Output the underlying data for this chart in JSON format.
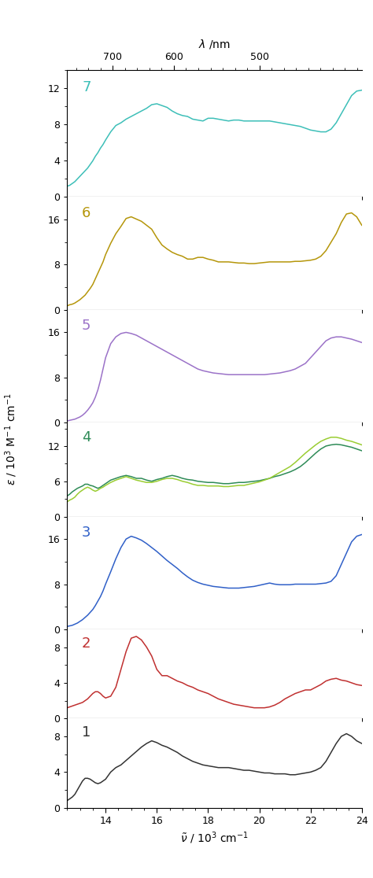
{
  "x_range": [
    12.5,
    24.0
  ],
  "lambda_ticks": [
    700,
    600,
    500
  ],
  "nu_ticks": [
    14,
    16,
    18,
    20,
    22,
    24
  ],
  "xlabel": "$\\tilde{\\nu}$ / 10$^3$ cm$^{-1}$",
  "ylabel": "$\\varepsilon$ / 10$^3$ M$^{-1}$ cm$^{-1}$",
  "lambda_label": "$\\lambda$ /nm",
  "panels": [
    {
      "label": "7",
      "color": "#3dbfb8",
      "ylim": [
        0,
        14
      ],
      "yticks": [
        0,
        4,
        8,
        12
      ],
      "data_x": [
        12.5,
        12.6,
        12.7,
        12.8,
        12.9,
        13.0,
        13.1,
        13.2,
        13.3,
        13.4,
        13.5,
        13.6,
        13.7,
        13.8,
        13.9,
        14.0,
        14.2,
        14.4,
        14.6,
        14.8,
        15.0,
        15.2,
        15.4,
        15.6,
        15.8,
        16.0,
        16.2,
        16.4,
        16.6,
        16.8,
        17.0,
        17.2,
        17.4,
        17.6,
        17.8,
        18.0,
        18.2,
        18.4,
        18.6,
        18.8,
        19.0,
        19.2,
        19.4,
        19.6,
        19.8,
        20.0,
        20.2,
        20.4,
        20.6,
        20.8,
        21.0,
        21.2,
        21.4,
        21.6,
        21.8,
        22.0,
        22.2,
        22.4,
        22.6,
        22.8,
        23.0,
        23.2,
        23.4,
        23.6,
        23.8,
        24.0
      ],
      "data_y": [
        1.2,
        1.3,
        1.5,
        1.7,
        2.0,
        2.3,
        2.6,
        2.9,
        3.2,
        3.6,
        4.0,
        4.5,
        4.9,
        5.4,
        5.8,
        6.3,
        7.2,
        7.9,
        8.2,
        8.6,
        8.9,
        9.2,
        9.5,
        9.8,
        10.2,
        10.3,
        10.1,
        9.9,
        9.5,
        9.2,
        9.0,
        8.9,
        8.6,
        8.5,
        8.4,
        8.7,
        8.7,
        8.6,
        8.5,
        8.4,
        8.5,
        8.5,
        8.4,
        8.4,
        8.4,
        8.4,
        8.4,
        8.4,
        8.3,
        8.2,
        8.1,
        8.0,
        7.9,
        7.8,
        7.6,
        7.4,
        7.3,
        7.2,
        7.2,
        7.5,
        8.2,
        9.2,
        10.2,
        11.2,
        11.7,
        11.8
      ]
    },
    {
      "label": "6",
      "color": "#b5960a",
      "ylim": [
        0,
        20
      ],
      "yticks": [
        0,
        8,
        16
      ],
      "data_x": [
        12.5,
        12.6,
        12.7,
        12.8,
        12.9,
        13.0,
        13.1,
        13.2,
        13.3,
        13.4,
        13.5,
        13.6,
        13.7,
        13.8,
        13.9,
        14.0,
        14.2,
        14.4,
        14.6,
        14.8,
        15.0,
        15.2,
        15.4,
        15.6,
        15.8,
        16.0,
        16.2,
        16.4,
        16.6,
        16.8,
        17.0,
        17.2,
        17.4,
        17.6,
        17.8,
        18.0,
        18.2,
        18.4,
        18.6,
        18.8,
        19.0,
        19.2,
        19.4,
        19.6,
        19.8,
        20.0,
        20.2,
        20.4,
        20.6,
        20.8,
        21.0,
        21.2,
        21.4,
        21.6,
        21.8,
        22.0,
        22.2,
        22.4,
        22.6,
        22.8,
        23.0,
        23.2,
        23.4,
        23.6,
        23.8,
        24.0
      ],
      "data_y": [
        0.7,
        0.9,
        1.0,
        1.2,
        1.5,
        1.8,
        2.2,
        2.6,
        3.2,
        3.8,
        4.5,
        5.5,
        6.5,
        7.5,
        8.5,
        9.8,
        11.8,
        13.5,
        14.8,
        16.2,
        16.5,
        16.1,
        15.7,
        15.0,
        14.3,
        12.8,
        11.5,
        10.8,
        10.2,
        9.8,
        9.5,
        9.0,
        9.0,
        9.3,
        9.3,
        9.0,
        8.8,
        8.5,
        8.5,
        8.5,
        8.4,
        8.3,
        8.3,
        8.2,
        8.2,
        8.3,
        8.4,
        8.5,
        8.5,
        8.5,
        8.5,
        8.5,
        8.6,
        8.6,
        8.7,
        8.8,
        9.0,
        9.5,
        10.5,
        12.0,
        13.5,
        15.5,
        17.0,
        17.2,
        16.5,
        15.0
      ]
    },
    {
      "label": "5",
      "color": "#9b72c8",
      "ylim": [
        0,
        20
      ],
      "yticks": [
        0,
        8,
        16
      ],
      "data_x": [
        12.5,
        12.6,
        12.7,
        12.8,
        12.9,
        13.0,
        13.1,
        13.2,
        13.3,
        13.4,
        13.5,
        13.6,
        13.7,
        13.8,
        13.9,
        14.0,
        14.2,
        14.4,
        14.6,
        14.8,
        15.0,
        15.2,
        15.4,
        15.6,
        15.8,
        16.0,
        16.2,
        16.4,
        16.6,
        16.8,
        17.0,
        17.2,
        17.4,
        17.6,
        17.8,
        18.0,
        18.2,
        18.4,
        18.6,
        18.8,
        19.0,
        19.2,
        19.4,
        19.6,
        19.8,
        20.0,
        20.2,
        20.4,
        20.6,
        20.8,
        21.0,
        21.2,
        21.4,
        21.6,
        21.8,
        22.0,
        22.2,
        22.4,
        22.6,
        22.8,
        23.0,
        23.2,
        23.4,
        23.6,
        23.8,
        24.0
      ],
      "data_y": [
        0.3,
        0.4,
        0.5,
        0.6,
        0.8,
        1.0,
        1.3,
        1.7,
        2.2,
        2.8,
        3.5,
        4.5,
        5.8,
        7.5,
        9.5,
        11.5,
        14.0,
        15.2,
        15.8,
        16.0,
        15.8,
        15.5,
        15.0,
        14.5,
        14.0,
        13.5,
        13.0,
        12.5,
        12.0,
        11.5,
        11.0,
        10.5,
        10.0,
        9.5,
        9.2,
        9.0,
        8.8,
        8.7,
        8.6,
        8.5,
        8.5,
        8.5,
        8.5,
        8.5,
        8.5,
        8.5,
        8.5,
        8.6,
        8.7,
        8.8,
        9.0,
        9.2,
        9.5,
        10.0,
        10.5,
        11.5,
        12.5,
        13.5,
        14.5,
        15.0,
        15.2,
        15.2,
        15.0,
        14.8,
        14.5,
        14.2
      ]
    },
    {
      "label": "4",
      "color_main": "#2e8b57",
      "color_alt": "#9acd32",
      "ylim": [
        0,
        16
      ],
      "yticks": [
        0,
        6,
        12
      ],
      "data_x": [
        12.5,
        12.6,
        12.7,
        12.8,
        12.9,
        13.0,
        13.1,
        13.2,
        13.3,
        13.4,
        13.5,
        13.6,
        13.7,
        13.8,
        13.9,
        14.0,
        14.2,
        14.4,
        14.6,
        14.8,
        15.0,
        15.2,
        15.4,
        15.6,
        15.8,
        16.0,
        16.2,
        16.4,
        16.6,
        16.8,
        17.0,
        17.2,
        17.4,
        17.6,
        17.8,
        18.0,
        18.2,
        18.4,
        18.6,
        18.8,
        19.0,
        19.2,
        19.4,
        19.6,
        19.8,
        20.0,
        20.2,
        20.4,
        20.6,
        20.8,
        21.0,
        21.2,
        21.4,
        21.6,
        21.8,
        22.0,
        22.2,
        22.4,
        22.6,
        22.8,
        23.0,
        23.2,
        23.4,
        23.6,
        23.8,
        24.0
      ],
      "data_y_main": [
        3.5,
        3.8,
        4.2,
        4.5,
        4.8,
        5.0,
        5.2,
        5.5,
        5.5,
        5.3,
        5.2,
        5.0,
        4.8,
        5.0,
        5.3,
        5.6,
        6.2,
        6.5,
        6.8,
        7.0,
        6.8,
        6.5,
        6.5,
        6.2,
        6.0,
        6.3,
        6.5,
        6.8,
        7.0,
        6.8,
        6.5,
        6.3,
        6.2,
        6.0,
        5.9,
        5.8,
        5.8,
        5.7,
        5.6,
        5.6,
        5.7,
        5.8,
        5.8,
        5.9,
        6.0,
        6.1,
        6.3,
        6.5,
        6.8,
        7.0,
        7.3,
        7.6,
        8.0,
        8.5,
        9.2,
        10.0,
        10.8,
        11.5,
        12.0,
        12.2,
        12.3,
        12.2,
        12.0,
        11.8,
        11.5,
        11.2
      ],
      "data_y_alt": [
        2.5,
        2.8,
        3.0,
        3.3,
        3.8,
        4.2,
        4.5,
        4.8,
        5.0,
        4.8,
        4.5,
        4.3,
        4.5,
        4.8,
        5.0,
        5.3,
        5.8,
        6.2,
        6.5,
        6.8,
        6.5,
        6.2,
        6.0,
        5.8,
        5.8,
        6.0,
        6.3,
        6.5,
        6.5,
        6.3,
        6.0,
        5.8,
        5.5,
        5.3,
        5.3,
        5.2,
        5.2,
        5.2,
        5.1,
        5.1,
        5.2,
        5.3,
        5.3,
        5.5,
        5.7,
        5.9,
        6.2,
        6.5,
        7.0,
        7.5,
        8.0,
        8.5,
        9.2,
        10.0,
        10.8,
        11.5,
        12.2,
        12.8,
        13.2,
        13.5,
        13.5,
        13.3,
        13.0,
        12.8,
        12.5,
        12.2
      ]
    },
    {
      "label": "3",
      "color": "#3060c8",
      "ylim": [
        0,
        20
      ],
      "yticks": [
        0,
        8,
        16
      ],
      "data_x": [
        12.5,
        12.6,
        12.7,
        12.8,
        12.9,
        13.0,
        13.1,
        13.2,
        13.3,
        13.4,
        13.5,
        13.6,
        13.7,
        13.8,
        13.9,
        14.0,
        14.2,
        14.4,
        14.6,
        14.8,
        15.0,
        15.2,
        15.4,
        15.6,
        15.8,
        16.0,
        16.2,
        16.4,
        16.6,
        16.8,
        17.0,
        17.2,
        17.4,
        17.6,
        17.8,
        18.0,
        18.2,
        18.4,
        18.6,
        18.8,
        19.0,
        19.2,
        19.4,
        19.6,
        19.8,
        20.0,
        20.2,
        20.4,
        20.6,
        20.8,
        21.0,
        21.2,
        21.4,
        21.6,
        21.8,
        22.0,
        22.2,
        22.4,
        22.6,
        22.8,
        23.0,
        23.2,
        23.4,
        23.6,
        23.8,
        24.0
      ],
      "data_y": [
        0.5,
        0.6,
        0.7,
        0.9,
        1.1,
        1.4,
        1.7,
        2.1,
        2.5,
        3.0,
        3.5,
        4.2,
        5.0,
        5.8,
        6.8,
        8.0,
        10.2,
        12.5,
        14.5,
        16.0,
        16.5,
        16.2,
        15.8,
        15.2,
        14.5,
        13.8,
        13.0,
        12.2,
        11.5,
        10.8,
        10.0,
        9.3,
        8.7,
        8.3,
        8.0,
        7.8,
        7.6,
        7.5,
        7.4,
        7.3,
        7.3,
        7.3,
        7.4,
        7.5,
        7.6,
        7.8,
        8.0,
        8.2,
        8.0,
        7.9,
        7.9,
        7.9,
        8.0,
        8.0,
        8.0,
        8.0,
        8.0,
        8.1,
        8.2,
        8.5,
        9.5,
        11.5,
        13.5,
        15.5,
        16.5,
        16.8
      ]
    },
    {
      "label": "2",
      "color": "#c03030",
      "ylim": [
        0,
        10
      ],
      "yticks": [
        0,
        4,
        8
      ],
      "data_x": [
        12.5,
        12.6,
        12.7,
        12.8,
        12.9,
        13.0,
        13.1,
        13.2,
        13.3,
        13.4,
        13.5,
        13.6,
        13.7,
        13.8,
        13.9,
        14.0,
        14.2,
        14.4,
        14.6,
        14.8,
        15.0,
        15.2,
        15.4,
        15.6,
        15.8,
        16.0,
        16.2,
        16.4,
        16.6,
        16.8,
        17.0,
        17.2,
        17.4,
        17.6,
        17.8,
        18.0,
        18.2,
        18.4,
        18.6,
        18.8,
        19.0,
        19.2,
        19.4,
        19.6,
        19.8,
        20.0,
        20.2,
        20.4,
        20.6,
        20.8,
        21.0,
        21.2,
        21.4,
        21.6,
        21.8,
        22.0,
        22.2,
        22.4,
        22.6,
        22.8,
        23.0,
        23.2,
        23.4,
        23.6,
        23.8,
        24.0
      ],
      "data_y": [
        1.2,
        1.3,
        1.4,
        1.5,
        1.6,
        1.7,
        1.8,
        2.0,
        2.2,
        2.5,
        2.8,
        3.0,
        3.0,
        2.8,
        2.5,
        2.3,
        2.5,
        3.5,
        5.5,
        7.5,
        9.0,
        9.2,
        8.8,
        8.0,
        7.0,
        5.5,
        4.8,
        4.8,
        4.5,
        4.2,
        4.0,
        3.7,
        3.5,
        3.2,
        3.0,
        2.8,
        2.5,
        2.2,
        2.0,
        1.8,
        1.6,
        1.5,
        1.4,
        1.3,
        1.2,
        1.2,
        1.2,
        1.3,
        1.5,
        1.8,
        2.2,
        2.5,
        2.8,
        3.0,
        3.2,
        3.2,
        3.5,
        3.8,
        4.2,
        4.4,
        4.5,
        4.3,
        4.2,
        4.0,
        3.8,
        3.7
      ]
    },
    {
      "label": "1",
      "color": "#333333",
      "ylim": [
        0,
        10
      ],
      "yticks": [
        0,
        4,
        8
      ],
      "data_x": [
        12.5,
        12.6,
        12.7,
        12.8,
        12.9,
        13.0,
        13.1,
        13.2,
        13.3,
        13.4,
        13.5,
        13.6,
        13.7,
        13.8,
        13.9,
        14.0,
        14.2,
        14.4,
        14.6,
        14.8,
        15.0,
        15.2,
        15.4,
        15.6,
        15.8,
        16.0,
        16.2,
        16.4,
        16.6,
        16.8,
        17.0,
        17.2,
        17.4,
        17.6,
        17.8,
        18.0,
        18.2,
        18.4,
        18.6,
        18.8,
        19.0,
        19.2,
        19.4,
        19.6,
        19.8,
        20.0,
        20.2,
        20.4,
        20.6,
        20.8,
        21.0,
        21.2,
        21.4,
        21.6,
        21.8,
        22.0,
        22.2,
        22.4,
        22.6,
        22.8,
        23.0,
        23.2,
        23.4,
        23.6,
        23.8,
        24.0
      ],
      "data_y": [
        0.8,
        1.0,
        1.2,
        1.5,
        2.0,
        2.5,
        3.0,
        3.3,
        3.3,
        3.2,
        3.0,
        2.8,
        2.7,
        2.8,
        3.0,
        3.2,
        4.0,
        4.5,
        4.8,
        5.3,
        5.8,
        6.3,
        6.8,
        7.2,
        7.5,
        7.3,
        7.0,
        6.8,
        6.5,
        6.2,
        5.8,
        5.5,
        5.2,
        5.0,
        4.8,
        4.7,
        4.6,
        4.5,
        4.5,
        4.5,
        4.4,
        4.3,
        4.2,
        4.2,
        4.1,
        4.0,
        3.9,
        3.9,
        3.8,
        3.8,
        3.8,
        3.7,
        3.7,
        3.8,
        3.9,
        4.0,
        4.2,
        4.5,
        5.2,
        6.2,
        7.2,
        8.0,
        8.3,
        8.0,
        7.5,
        7.2
      ]
    }
  ]
}
